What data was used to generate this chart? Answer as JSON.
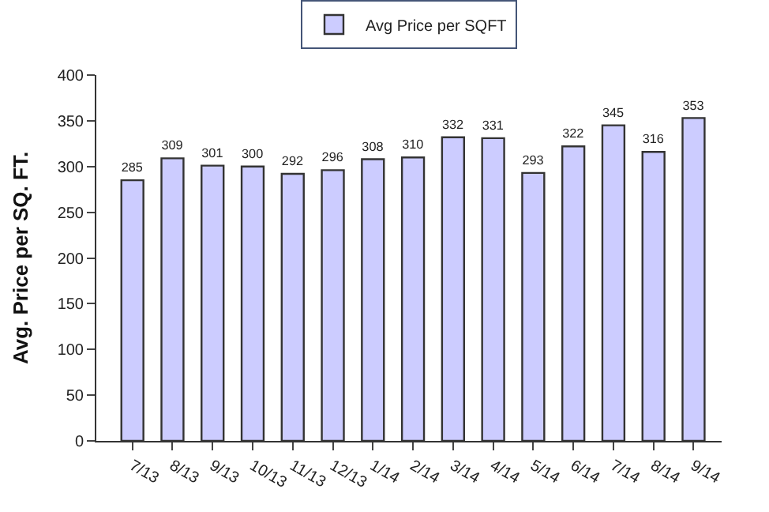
{
  "chart_data": {
    "type": "bar",
    "categories": [
      "7/13",
      "8/13",
      "9/13",
      "10/13",
      "11/13",
      "12/13",
      "1/14",
      "2/14",
      "3/14",
      "4/14",
      "5/14",
      "6/14",
      "7/14",
      "8/14",
      "9/14"
    ],
    "series": [
      {
        "name": "Avg Price per SQFT",
        "color": "#ccccff",
        "values": [
          285,
          309,
          301,
          300,
          292,
          296,
          308,
          310,
          332,
          331,
          293,
          322,
          345,
          316,
          353
        ]
      }
    ],
    "ylabel": "Avg. Price per SQ. FT.",
    "ylim": [
      0,
      400
    ],
    "yticks": [
      0,
      50,
      100,
      150,
      200,
      250,
      300,
      350,
      400
    ],
    "data_labels": true,
    "legend": "top"
  }
}
